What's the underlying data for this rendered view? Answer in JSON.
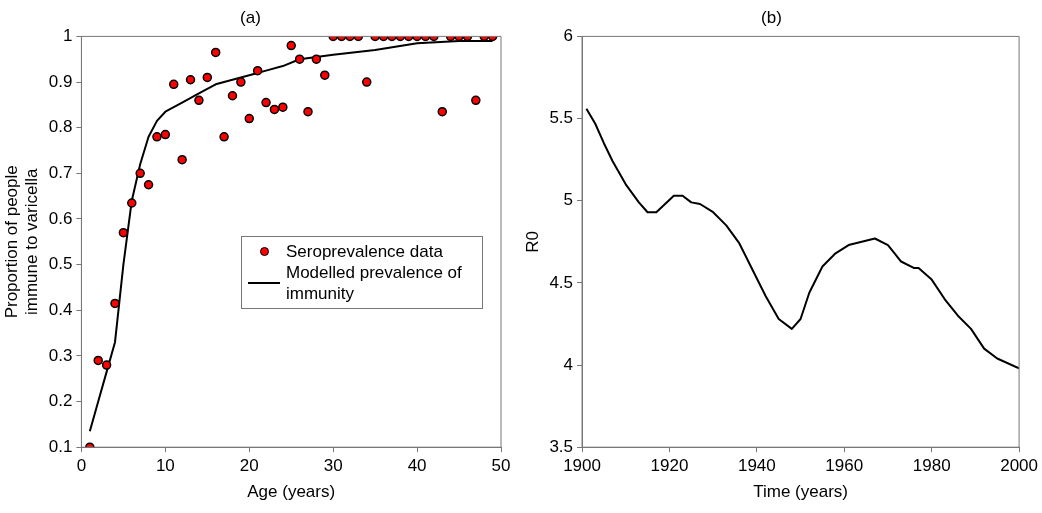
{
  "chart_data": [
    {
      "type": "scatter",
      "title": "(a)",
      "xlabel": "Age (years)",
      "ylabel": "Proportion of people immune to varicella",
      "xlim": [
        0,
        50
      ],
      "xticks": [
        0,
        10,
        20,
        30,
        40,
        50
      ],
      "ylim": [
        0.1,
        1
      ],
      "yticks": [
        0.1,
        0.2,
        0.3,
        0.4,
        0.5,
        0.6,
        0.7,
        0.8,
        0.9,
        1
      ],
      "grid": false,
      "legend": "right",
      "series": [
        {
          "name": "Seroprevalence data",
          "marker": "circle",
          "color": "#ff0000",
          "x": [
            1,
            2,
            3,
            4,
            5,
            6,
            7,
            8,
            9,
            10,
            11,
            12,
            13,
            14,
            15,
            16,
            17,
            18,
            19,
            20,
            21,
            22,
            23,
            24,
            25,
            26,
            27,
            28,
            29,
            30,
            31,
            32,
            33,
            34,
            35,
            36,
            37,
            38,
            39,
            40,
            41,
            42,
            43,
            44,
            45,
            46,
            47,
            48,
            49
          ],
          "values": [
            0.1,
            0.29,
            0.28,
            0.415,
            0.57,
            0.635,
            0.7,
            0.675,
            0.78,
            0.785,
            0.895,
            0.73,
            0.905,
            0.86,
            0.91,
            0.965,
            0.78,
            0.87,
            0.9,
            0.82,
            0.925,
            0.855,
            0.84,
            0.845,
            0.98,
            0.95,
            0.835,
            0.95,
            0.915,
            1,
            1,
            1,
            1,
            0.9,
            1,
            1,
            1,
            1,
            1,
            1,
            1,
            1,
            0.835,
            1,
            1,
            1,
            0.86,
            1,
            1
          ]
        },
        {
          "name": "Modelled prevalence of immunity",
          "type": "line",
          "marker": "none",
          "color": "#000000",
          "x": [
            1,
            2,
            3,
            4,
            5,
            6,
            7,
            8,
            9,
            10,
            12,
            14,
            16,
            18,
            20,
            22,
            24,
            26,
            28,
            30,
            35,
            40,
            45,
            49
          ],
          "values": [
            0.135,
            0.2,
            0.265,
            0.33,
            0.5,
            0.64,
            0.72,
            0.78,
            0.815,
            0.835,
            0.855,
            0.875,
            0.895,
            0.905,
            0.915,
            0.925,
            0.935,
            0.95,
            0.955,
            0.96,
            0.97,
            0.985,
            0.99,
            0.99
          ]
        }
      ]
    },
    {
      "type": "line",
      "title": "(b)",
      "xlabel": "Time (years)",
      "ylabel": "R0",
      "xlim": [
        1900,
        2000
      ],
      "xticks": [
        1900,
        1920,
        1940,
        1960,
        1980,
        2000
      ],
      "ylim": [
        3.5,
        6
      ],
      "yticks": [
        3.5,
        4,
        4.5,
        5,
        5.5,
        6
      ],
      "grid": false,
      "legend": false,
      "series": [
        {
          "marker": "none",
          "color": "#000000",
          "x": [
            1901,
            1903,
            1905,
            1907,
            1910,
            1913,
            1915,
            1917,
            1919,
            1921,
            1923,
            1925,
            1927,
            1930,
            1933,
            1936,
            1939,
            1942,
            1945,
            1948,
            1950,
            1952,
            1955,
            1958,
            1961,
            1964,
            1967,
            1970,
            1973,
            1976,
            1977,
            1980,
            1983,
            1986,
            1989,
            1992,
            1995,
            2000
          ],
          "values": [
            5.56,
            5.47,
            5.35,
            5.24,
            5.1,
            4.99,
            4.93,
            4.93,
            4.98,
            5.03,
            5.03,
            4.99,
            4.98,
            4.93,
            4.85,
            4.74,
            4.58,
            4.42,
            4.28,
            4.22,
            4.28,
            4.44,
            4.6,
            4.68,
            4.73,
            4.75,
            4.77,
            4.73,
            4.63,
            4.59,
            4.59,
            4.52,
            4.4,
            4.3,
            4.22,
            4.1,
            4.04,
            3.98
          ]
        }
      ]
    }
  ]
}
